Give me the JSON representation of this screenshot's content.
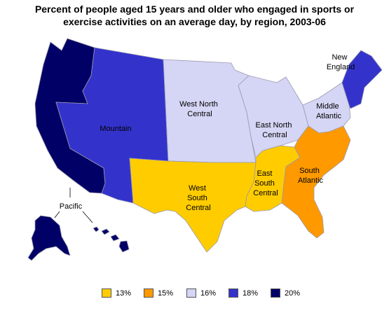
{
  "title_line1": "Percent of people aged 15 years and older who engaged in sports or",
  "title_line2": "exercise activities on an average day, by region, 2003-06",
  "colors": {
    "c13": "#ffcc00",
    "c15": "#ff9900",
    "c16": "#d5d5f5",
    "c18": "#3333cc",
    "c20": "#000066"
  },
  "regions": [
    {
      "id": "pacific",
      "label": "Pacific",
      "value": 20
    },
    {
      "id": "mountain",
      "label": "Mountain",
      "value": 18
    },
    {
      "id": "west-north-central",
      "label_lines": [
        "West North",
        "Central"
      ],
      "value": 16
    },
    {
      "id": "east-north-central",
      "label_lines": [
        "East North",
        "Central"
      ],
      "value": 16
    },
    {
      "id": "middle-atlantic",
      "label_lines": [
        "Middle",
        "Atlantic"
      ],
      "value": 16
    },
    {
      "id": "new-england",
      "label_lines": [
        "New",
        "England"
      ],
      "value": 18
    },
    {
      "id": "west-south-central",
      "label_lines": [
        "West",
        "South",
        "Central"
      ],
      "value": 13
    },
    {
      "id": "east-south-central",
      "label_lines": [
        "East",
        "South",
        "Central"
      ],
      "value": 13
    },
    {
      "id": "south-atlantic",
      "label_lines": [
        "South",
        "Atlantic"
      ],
      "value": 15
    }
  ],
  "legend": [
    {
      "label": "13%",
      "color": "#ffcc00"
    },
    {
      "label": "15%",
      "color": "#ff9900"
    },
    {
      "label": "16%",
      "color": "#d5d5f5"
    },
    {
      "label": "18%",
      "color": "#3333cc"
    },
    {
      "label": "20%",
      "color": "#000066"
    }
  ]
}
